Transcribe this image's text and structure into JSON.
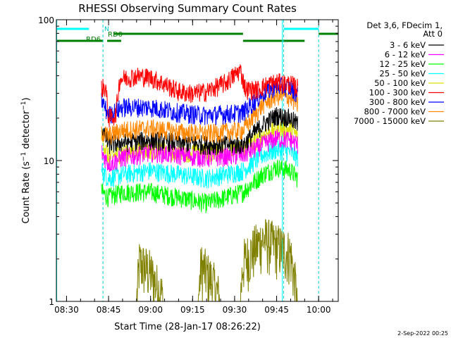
{
  "chart_data": {
    "type": "line",
    "title": "RHESSI Observing Summary Count Rates",
    "xlabel": "Start Time (28-Jan-17 08:26:22)",
    "ylabel": "Count Rate (s⁻¹ detector⁻¹)",
    "ylabel_main": "Count Rate (s",
    "ylabel_sup1": "−1",
    "ylabel_mid": " detector",
    "ylabel_sup2": "−1",
    "ylabel_end": ")",
    "y_scale": "log",
    "ylim": [
      1,
      100
    ],
    "xlim": [
      "08:26:22",
      "10:07:00"
    ],
    "xticks": [
      "08:30",
      "08:45",
      "09:00",
      "09:15",
      "09:30",
      "09:45",
      "10:00"
    ],
    "yticks": [
      "1",
      "10",
      "100"
    ],
    "legend_title": [
      "Det 3,6, FDecim 1,",
      "Att 0"
    ],
    "legend_placement": "right",
    "footer_date": "2-Sep-2022 00:25",
    "annotations": {
      "rd0": "RD0",
      "rd6": "RD6",
      "n_marker": "N"
    },
    "flag_bars": {
      "cyan_top": [
        [
          "08:26:22",
          "08:38:00"
        ],
        [
          "09:47:30",
          "10:00:00"
        ]
      ],
      "green_rd0": [
        [
          "08:47:00",
          "09:33:00"
        ],
        [
          "10:00:00",
          "10:07:00"
        ]
      ],
      "green_rd6": [
        [
          "08:26:22",
          "08:43:00"
        ],
        [
          "08:44:30",
          "08:49:30"
        ],
        [
          "09:33:00",
          "09:55:00"
        ]
      ]
    },
    "vlines": {
      "solid_cyan": [
        "08:26:30",
        "09:47:00"
      ],
      "dashed_cyan": [
        "08:43:00",
        "09:47:30",
        "10:00:00"
      ]
    },
    "series": [
      {
        "name": "3 - 6 keV",
        "color": "#000000",
        "points": [
          [
            "08:42:30",
            17
          ],
          [
            "08:45:00",
            13
          ],
          [
            "08:50:00",
            13.5
          ],
          [
            "09:00:00",
            14
          ],
          [
            "09:10:00",
            13.5
          ],
          [
            "09:20:00",
            13
          ],
          [
            "09:33:00",
            13
          ],
          [
            "09:40:00",
            18
          ],
          [
            "09:45:00",
            21
          ],
          [
            "09:50:00",
            20
          ],
          [
            "09:52:30",
            18
          ]
        ]
      },
      {
        "name": "6 - 12 keV",
        "color": "#ff00ff",
        "points": [
          [
            "08:42:30",
            11.5
          ],
          [
            "08:45:00",
            9.5
          ],
          [
            "08:50:00",
            10.5
          ],
          [
            "09:00:00",
            11.5
          ],
          [
            "09:10:00",
            11
          ],
          [
            "09:20:00",
            10.5
          ],
          [
            "09:33:00",
            11
          ],
          [
            "09:40:00",
            13
          ],
          [
            "09:45:00",
            14.5
          ],
          [
            "09:50:00",
            14
          ],
          [
            "09:52:30",
            13
          ]
        ]
      },
      {
        "name": "12 - 25 keV",
        "color": "#00ff00",
        "points": [
          [
            "08:42:30",
            6
          ],
          [
            "08:45:00",
            5.5
          ],
          [
            "08:50:00",
            6
          ],
          [
            "09:00:00",
            6
          ],
          [
            "09:10:00",
            5.5
          ],
          [
            "09:20:00",
            5
          ],
          [
            "09:33:00",
            6
          ],
          [
            "09:40:00",
            8
          ],
          [
            "09:45:00",
            9
          ],
          [
            "09:50:00",
            8.5
          ],
          [
            "09:52:30",
            7.5
          ]
        ]
      },
      {
        "name": "25 - 50 keV",
        "color": "#00ffff",
        "points": [
          [
            "08:42:30",
            8.5
          ],
          [
            "08:45:00",
            7.5
          ],
          [
            "08:50:00",
            8
          ],
          [
            "09:00:00",
            8.5
          ],
          [
            "09:10:00",
            8
          ],
          [
            "09:20:00",
            7.5
          ],
          [
            "09:33:00",
            8.5
          ],
          [
            "09:40:00",
            11
          ],
          [
            "09:45:00",
            12
          ],
          [
            "09:50:00",
            11.5
          ],
          [
            "09:52:30",
            10.5
          ]
        ]
      },
      {
        "name": "50 - 100 keV",
        "color": "#e0e000",
        "points": [
          [
            "08:42:30",
            15
          ],
          [
            "08:45:00",
            10.5
          ],
          [
            "08:50:00",
            11.5
          ],
          [
            "09:00:00",
            12
          ],
          [
            "09:10:00",
            11.5
          ],
          [
            "09:20:00",
            11.5
          ],
          [
            "09:33:00",
            12
          ],
          [
            "09:40:00",
            15
          ],
          [
            "09:45:00",
            17
          ],
          [
            "09:50:00",
            16.5
          ],
          [
            "09:52:30",
            15
          ]
        ]
      },
      {
        "name": "100 - 300 keV",
        "color": "#ff0000",
        "points": [
          [
            "08:42:30",
            33
          ],
          [
            "08:44:00",
            33
          ],
          [
            "08:45:00",
            20
          ],
          [
            "08:47:30",
            21
          ],
          [
            "08:49:00",
            38
          ],
          [
            "08:55:00",
            40
          ],
          [
            "09:00:00",
            39
          ],
          [
            "09:05:00",
            35
          ],
          [
            "09:10:00",
            31
          ],
          [
            "09:15:00",
            30
          ],
          [
            "09:20:00",
            31
          ],
          [
            "09:27:00",
            36
          ],
          [
            "09:32:00",
            44
          ],
          [
            "09:34:00",
            32
          ],
          [
            "09:38:00",
            32
          ],
          [
            "09:42:00",
            35
          ],
          [
            "09:45:00",
            36
          ],
          [
            "09:50:00",
            35
          ],
          [
            "09:52:30",
            33
          ]
        ]
      },
      {
        "name": "300 - 800 keV",
        "color": "#0000ff",
        "points": [
          [
            "08:42:30",
            27
          ],
          [
            "08:45:00",
            21
          ],
          [
            "08:50:00",
            24
          ],
          [
            "09:00:00",
            24
          ],
          [
            "09:10:00",
            22
          ],
          [
            "09:20:00",
            21
          ],
          [
            "09:33:00",
            22
          ],
          [
            "09:40:00",
            30
          ],
          [
            "09:45:00",
            34
          ],
          [
            "09:50:00",
            33
          ],
          [
            "09:52:30",
            30
          ]
        ]
      },
      {
        "name": "800 - 7000 keV",
        "color": "#ff8800",
        "points": [
          [
            "08:42:30",
            16
          ],
          [
            "08:45:00",
            15
          ],
          [
            "08:50:00",
            16.5
          ],
          [
            "09:00:00",
            17
          ],
          [
            "09:10:00",
            16
          ],
          [
            "09:20:00",
            15.5
          ],
          [
            "09:33:00",
            16.5
          ],
          [
            "09:40:00",
            25
          ],
          [
            "09:45:00",
            29
          ],
          [
            "09:50:00",
            28
          ],
          [
            "09:52:30",
            25
          ]
        ]
      },
      {
        "name": "7000 - 15000 keV",
        "color": "#808000",
        "points": [
          [
            "08:42:30",
            1
          ],
          [
            "08:55:00",
            1
          ],
          [
            "08:56:00",
            1.9
          ],
          [
            "09:00:00",
            1.6
          ],
          [
            "09:05:00",
            1
          ],
          [
            "09:17:00",
            1
          ],
          [
            "09:18:00",
            1.8
          ],
          [
            "09:22:00",
            1.4
          ],
          [
            "09:25:00",
            1
          ],
          [
            "09:32:00",
            1
          ],
          [
            "09:33:00",
            1.9
          ],
          [
            "09:40:00",
            2.8
          ],
          [
            "09:45:00",
            2.5
          ],
          [
            "09:50:00",
            2.2
          ],
          [
            "09:52:30",
            1
          ]
        ]
      }
    ]
  }
}
